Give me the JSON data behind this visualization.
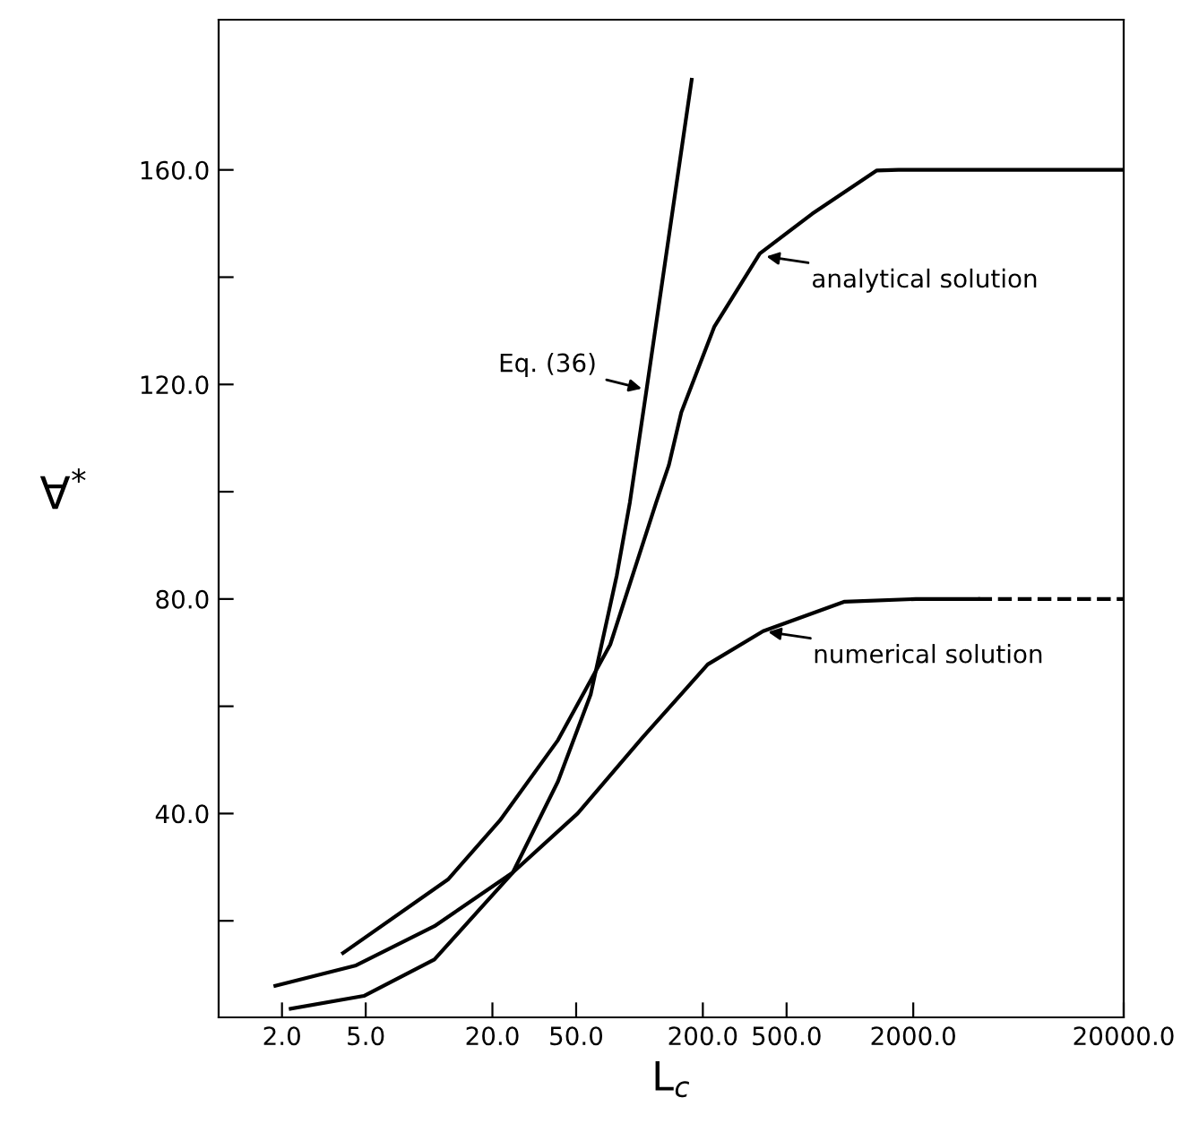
{
  "chart_data": {
    "type": "line",
    "xlabel": "L$_{c}$",
    "ylabel": "∀$^{*}$",
    "log": "x",
    "xlim": [
      1,
      20000
    ],
    "ylim": [
      2,
      188
    ],
    "xticks": [
      {
        "value": 2,
        "label": "2.0"
      },
      {
        "value": 5,
        "label": "5.0"
      },
      {
        "value": 20,
        "label": "20.0"
      },
      {
        "value": 50,
        "label": "50.0"
      },
      {
        "value": 200,
        "label": "200.0"
      },
      {
        "value": 500,
        "label": "500.0"
      },
      {
        "value": 2000,
        "label": "2000.0"
      },
      {
        "value": 20000,
        "label": "20000.0"
      }
    ],
    "yticks": [
      {
        "value": 20,
        "label": null
      },
      {
        "value": 40,
        "label": "40.0"
      },
      {
        "value": 60,
        "label": null
      },
      {
        "value": 80,
        "label": "80.0"
      },
      {
        "value": 100,
        "label": null
      },
      {
        "value": 120,
        "label": "120.0"
      },
      {
        "value": 140,
        "label": null
      },
      {
        "value": 160,
        "label": "160.0"
      }
    ],
    "grid": false,
    "legend": false,
    "marker": "none",
    "series": [
      {
        "color": "#000000",
        "line_style": "solid",
        "x": [
          3.9,
          12.3,
          21.7,
          41,
          72.6,
          120,
          138,
          158,
          227,
          373,
          661,
          1343,
          1700,
          20000
        ],
        "values": [
          14,
          27.7,
          38.7,
          53.7,
          71.5,
          98,
          105,
          114.8,
          130.8,
          144.4,
          151.8,
          159.9,
          160,
          160
        ]
      },
      {
        "color": "#000000",
        "line_style": "solid",
        "x": [
          2.2,
          4.9,
          10.6,
          25,
          41,
          58.6,
          78,
          90,
          108,
          177
        ],
        "values": [
          3.6,
          6,
          12.8,
          29,
          46,
          62.2,
          84.4,
          98,
          119,
          176.8
        ]
      },
      {
        "color": "#000000",
        "line_style": "solid",
        "x": [
          1.86,
          4.5,
          10.6,
          25,
          50.8,
          103.5,
          211,
          387,
          944,
          2061,
          4070
        ],
        "values": [
          7.9,
          11.7,
          19,
          29,
          40,
          54.2,
          67.8,
          74,
          79.5,
          80,
          80
        ]
      },
      {
        "color": "#000000",
        "line_style": "dashed",
        "x": [
          4070,
          20000
        ],
        "values": [
          80,
          80
        ]
      }
    ],
    "annotations": [
      {
        "text": "Eq. (36)",
        "x": 108,
        "y": 119
      },
      {
        "text": "analytical solution",
        "x": 380,
        "y": 144
      },
      {
        "text": "numerical solution",
        "x": 387,
        "y": 74
      }
    ]
  }
}
